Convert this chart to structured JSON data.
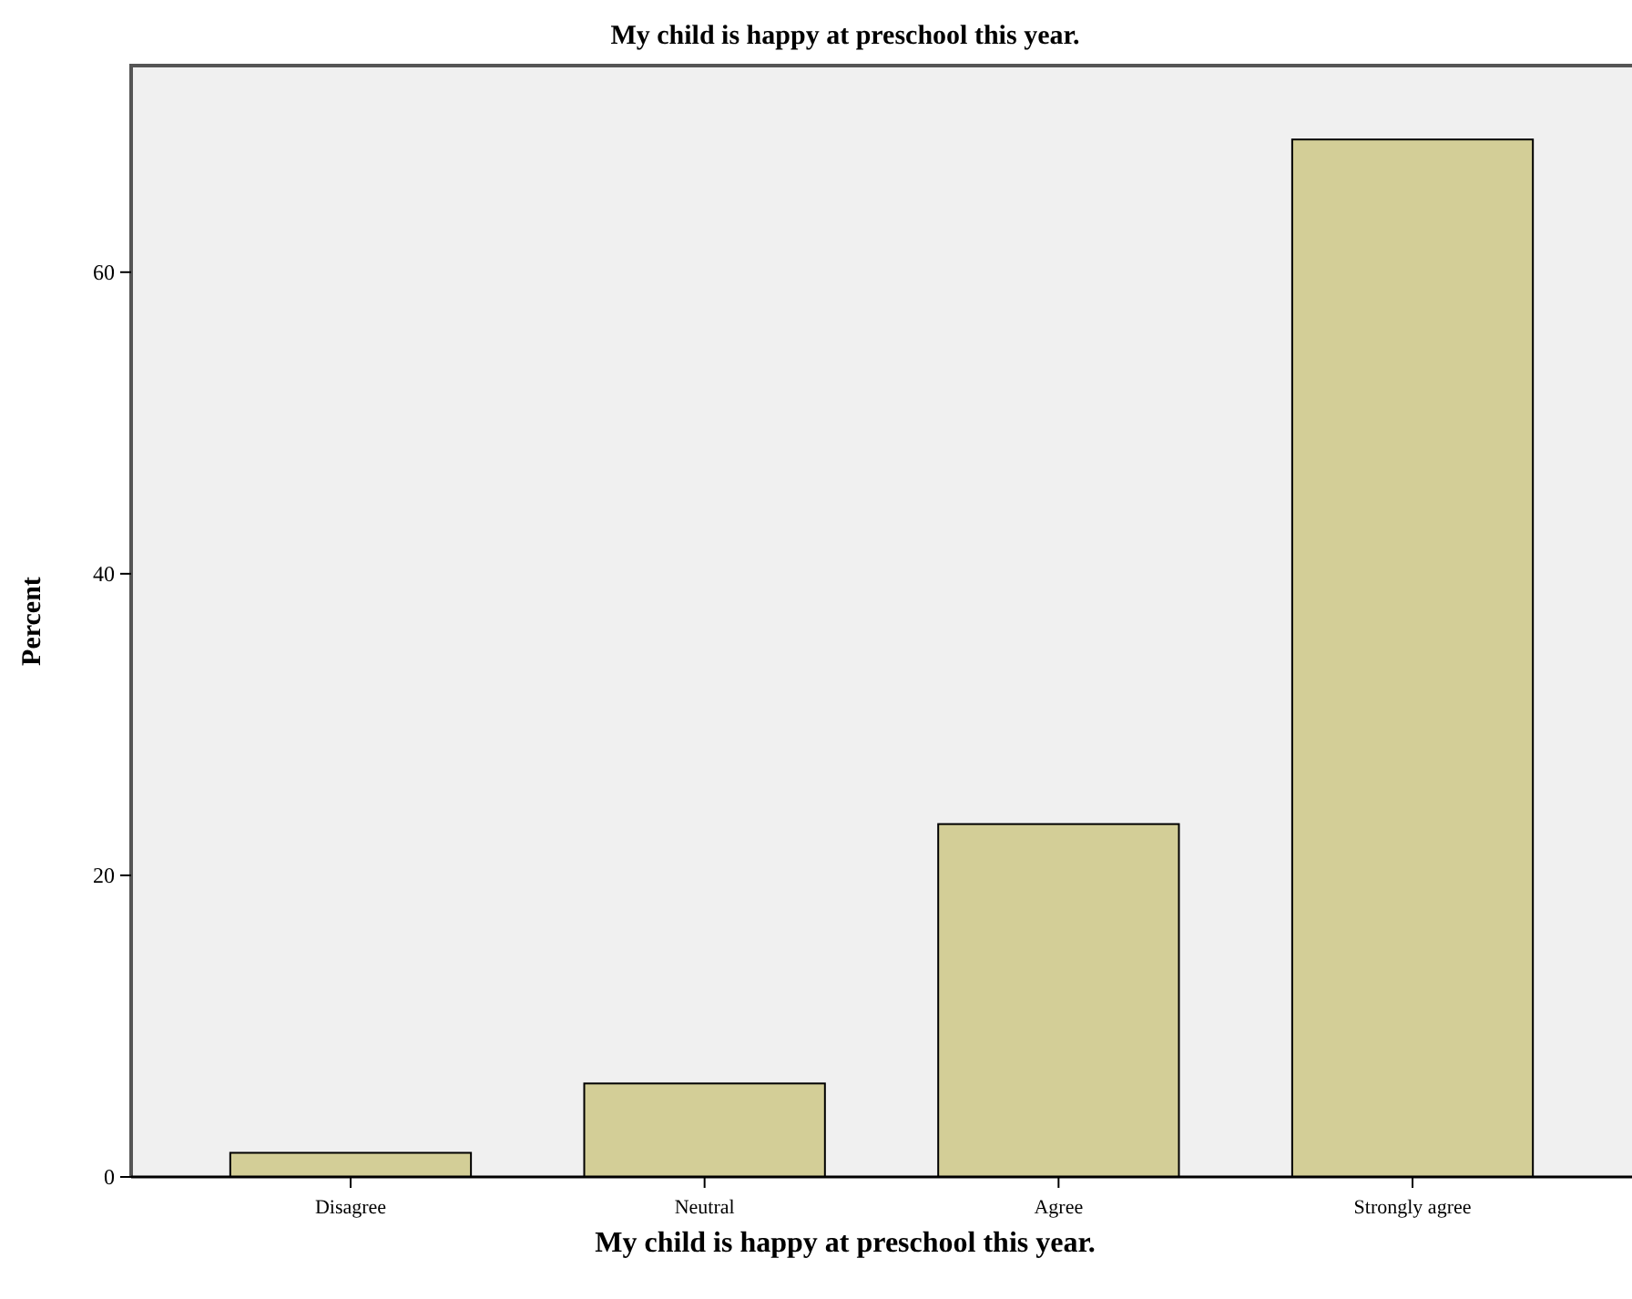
{
  "chart_data": {
    "type": "bar",
    "title": "My child is happy at preschool this year.",
    "xlabel": "My child is happy at preschool this year.",
    "ylabel": "Percent",
    "categories": [
      "Disagree",
      "Neutral",
      "Agree",
      "Strongly agree"
    ],
    "values": [
      1.6,
      6.2,
      23.4,
      68.8
    ],
    "color": "#d3ce97",
    "ylim": [
      0,
      73.7
    ],
    "yticks": [
      0,
      20,
      40,
      60
    ],
    "grid": false
  }
}
